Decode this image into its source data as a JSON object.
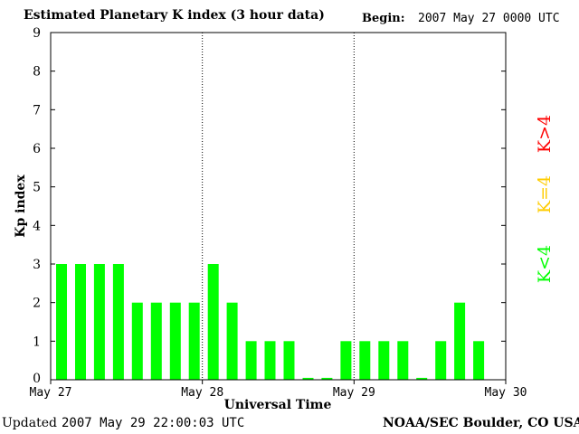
{
  "header": {
    "title": "Estimated Planetary K index (3 hour data)",
    "begin_label": "Begin:",
    "begin_value": "2007 May 27 0000 UTC"
  },
  "footer": {
    "updated_label": "Updated",
    "updated_value": "2007 May 29 22:00:03 UTC",
    "source": "NOAA/SEC Boulder, CO USA"
  },
  "legend": {
    "high": "K>4",
    "equal": "K=4",
    "low": "K<4"
  },
  "colors": {
    "low": "#00ff00",
    "equal": "#ffcc00",
    "high": "#ff0000",
    "axis": "#000000"
  },
  "chart_data": {
    "type": "bar",
    "title": "Estimated Planetary K index (3 hour data)",
    "xlabel": "Universal Time",
    "ylabel": "Kp index",
    "ylim": [
      0,
      9
    ],
    "yticks": [
      "0",
      "1",
      "2",
      "3",
      "4",
      "5",
      "6",
      "7",
      "8",
      "9"
    ],
    "xticks": [
      "May 27",
      "May 28",
      "May 29",
      "May 30"
    ],
    "day_dividers": [
      "May 28",
      "May 29"
    ],
    "bar_interval_hours": 3,
    "values": [
      3,
      3,
      3,
      3,
      2,
      2,
      2,
      2,
      3,
      2,
      1,
      1,
      1,
      0.05,
      0.05,
      1,
      1,
      1,
      1,
      0.05,
      1,
      2,
      1
    ]
  }
}
